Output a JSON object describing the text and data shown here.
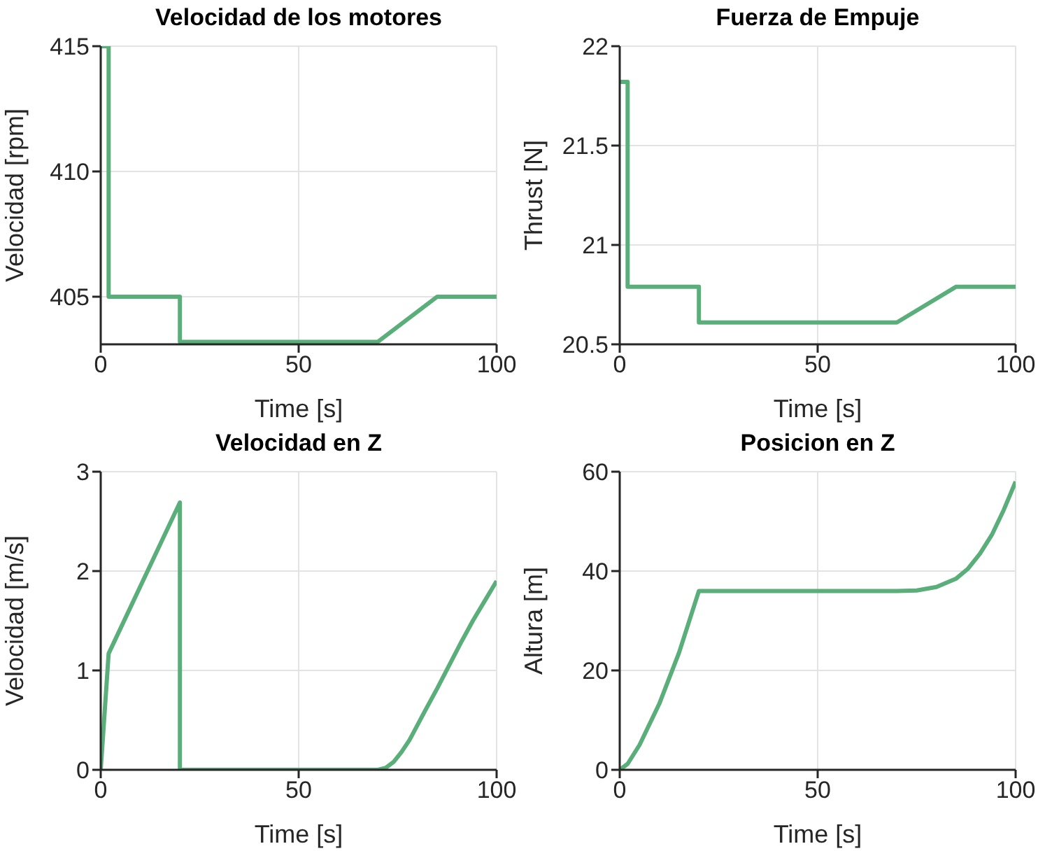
{
  "chart_data": [
    {
      "type": "line",
      "title": "Velocidad de los motores",
      "xlabel": "Time [s]",
      "ylabel": "Velocidad [rpm]",
      "x": [
        0,
        2,
        2,
        20,
        20,
        70,
        85,
        100
      ],
      "values": [
        415,
        415,
        405,
        405,
        403.2,
        403.2,
        405,
        405
      ],
      "color": "#5aae7a",
      "xlim": [
        0,
        100
      ],
      "xticks": [
        0,
        50,
        100
      ],
      "ylim": [
        403.1,
        415
      ],
      "yticks": [
        405,
        410,
        415
      ],
      "grid": true
    },
    {
      "type": "line",
      "title": "Fuerza de Empuje",
      "xlabel": "Time [s]",
      "ylabel": "Thrust [N]",
      "x": [
        0,
        2,
        2,
        20,
        20,
        70,
        85,
        100
      ],
      "values": [
        21.82,
        21.82,
        20.79,
        20.79,
        20.61,
        20.61,
        20.79,
        20.79
      ],
      "color": "#5aae7a",
      "xlim": [
        0,
        100
      ],
      "xticks": [
        0,
        50,
        100
      ],
      "ylim": [
        20.5,
        22
      ],
      "yticks": [
        20.5,
        21,
        21.5,
        22
      ],
      "grid": true
    },
    {
      "type": "line",
      "title": "Velocidad en Z",
      "xlabel": "Time [s]",
      "ylabel": "Velocidad [m/s]",
      "x": [
        0,
        2,
        20,
        20,
        70,
        72,
        74,
        76,
        78,
        80,
        82,
        85,
        88,
        91,
        94,
        97,
        100
      ],
      "values": [
        0,
        1.17,
        2.69,
        0,
        0,
        0.02,
        0.08,
        0.18,
        0.3,
        0.45,
        0.6,
        0.82,
        1.05,
        1.28,
        1.5,
        1.7,
        1.9
      ],
      "color": "#5aae7a",
      "xlim": [
        0,
        100
      ],
      "xticks": [
        0,
        50,
        100
      ],
      "ylim": [
        0,
        3
      ],
      "yticks": [
        0,
        1,
        2,
        3
      ],
      "grid": true
    },
    {
      "type": "line",
      "title": "Posicion en Z",
      "xlabel": "Time [s]",
      "ylabel": "Altura [m]",
      "x": [
        0,
        2,
        5,
        10,
        15,
        20,
        70,
        75,
        80,
        85,
        88,
        91,
        94,
        97,
        100
      ],
      "values": [
        0,
        1.2,
        5,
        13.3,
        23.6,
        36,
        36,
        36.1,
        36.8,
        38.5,
        40.5,
        43.5,
        47.3,
        52.3,
        58
      ],
      "color": "#5aae7a",
      "xlim": [
        0,
        100
      ],
      "xticks": [
        0,
        50,
        100
      ],
      "ylim": [
        0,
        60
      ],
      "yticks": [
        0,
        20,
        40,
        60
      ],
      "grid": true
    }
  ]
}
